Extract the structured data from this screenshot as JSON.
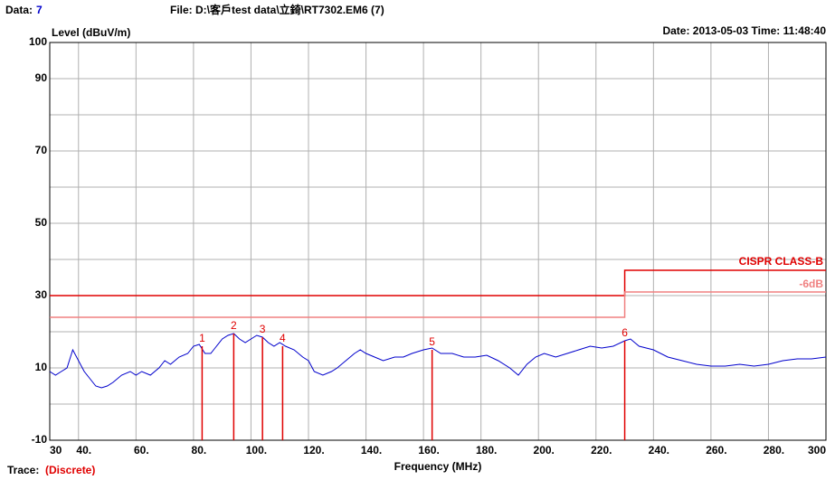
{
  "header": {
    "data_label": "Data:",
    "data_value": "7",
    "file": "File: D:\\客戶test data\\立錡\\RT7302.EM6  (7)",
    "date": "Date: 2013-05-03  Time: 11:48:40",
    "trace_label": "Trace:",
    "trace_value": "(Discrete)"
  },
  "chart_data": {
    "type": "line",
    "ylabel": "Level (dBuV/m)",
    "xlabel": "Frequency (MHz)",
    "xlim": [
      30,
      300
    ],
    "ylim": [
      -10,
      100
    ],
    "xticks": [
      30,
      {
        "value": 40,
        "label": "40."
      },
      {
        "value": 60,
        "label": "60."
      },
      {
        "value": 80,
        "label": "80."
      },
      {
        "value": 100,
        "label": "100."
      },
      {
        "value": 120,
        "label": "120."
      },
      {
        "value": 140,
        "label": "140."
      },
      {
        "value": 160,
        "label": "160."
      },
      {
        "value": 180,
        "label": "180."
      },
      {
        "value": 200,
        "label": "200."
      },
      {
        "value": 220,
        "label": "220."
      },
      {
        "value": 240,
        "label": "240."
      },
      {
        "value": 260,
        "label": "260."
      },
      {
        "value": 280,
        "label": "280."
      },
      300
    ],
    "yticks": [
      -10,
      10,
      30,
      50,
      70,
      90,
      100
    ],
    "ygrid": [
      0,
      10,
      20,
      30,
      40,
      50,
      60,
      70,
      80,
      90
    ],
    "grid": true,
    "series": [
      {
        "color": "#0000cc",
        "x": [
          30,
          32,
          34,
          36,
          38,
          40,
          42,
          44,
          46,
          48,
          50,
          52,
          55,
          58,
          60,
          62,
          65,
          68,
          70,
          72,
          75,
          78,
          80,
          82,
          84,
          86,
          88,
          90,
          92,
          94,
          96,
          98,
          100,
          102,
          104,
          106,
          108,
          110,
          112,
          115,
          118,
          120,
          122,
          125,
          128,
          130,
          133,
          136,
          138,
          140,
          143,
          146,
          150,
          153,
          156,
          160,
          163,
          166,
          170,
          174,
          178,
          182,
          186,
          190,
          193,
          196,
          199,
          202,
          206,
          210,
          214,
          218,
          222,
          226,
          230,
          232,
          235,
          240,
          245,
          250,
          255,
          260,
          265,
          270,
          275,
          280,
          285,
          290,
          295,
          300
        ],
        "values": [
          9,
          8,
          9,
          10,
          15,
          12,
          9,
          7,
          5,
          4.5,
          5,
          6,
          8,
          9,
          8,
          9,
          8,
          10,
          12,
          11,
          13,
          14,
          16,
          16.5,
          14,
          14,
          16,
          18,
          19,
          19.5,
          18,
          17,
          18,
          19,
          18.5,
          17,
          16,
          17,
          16,
          15,
          13,
          12,
          9,
          8,
          9,
          10,
          12,
          14,
          15,
          14,
          13,
          12,
          13,
          13,
          14,
          15,
          15.5,
          14,
          14,
          13,
          13,
          13.5,
          12,
          10,
          8,
          11,
          13,
          14,
          13,
          14,
          15,
          16,
          15.5,
          16,
          17.5,
          18,
          16,
          15,
          13,
          12,
          11,
          10.5,
          10.5,
          11,
          10.5,
          11,
          12,
          12.5,
          12.5,
          13
        ]
      },
      {
        "name": "CISPR CLASS-B",
        "color": "#e00000",
        "x": [
          30,
          230,
          230,
          300
        ],
        "values": [
          30,
          30,
          37,
          37
        ]
      },
      {
        "name": "-6dB",
        "color": "#f08080",
        "x": [
          30,
          230,
          230,
          300
        ],
        "values": [
          24,
          24,
          31,
          31
        ]
      }
    ],
    "markers": [
      {
        "label": "1",
        "x": 83,
        "value": 16
      },
      {
        "label": "2",
        "x": 94,
        "value": 19.5
      },
      {
        "label": "3",
        "x": 104,
        "value": 18.5
      },
      {
        "label": "4",
        "x": 111,
        "value": 16
      },
      {
        "label": "5",
        "x": 163,
        "value": 15
      },
      {
        "label": "6",
        "x": 230,
        "value": 17.5
      }
    ],
    "marker_color": "#e00000"
  }
}
